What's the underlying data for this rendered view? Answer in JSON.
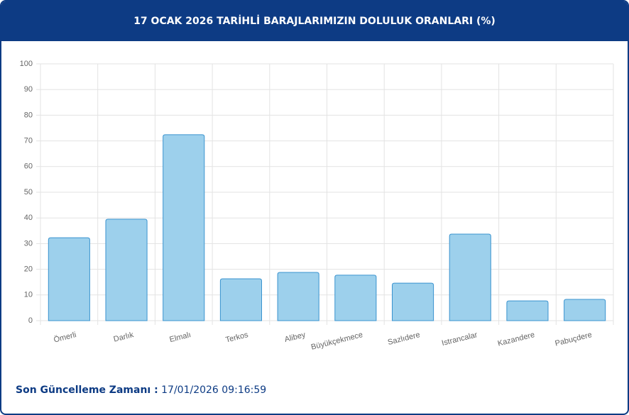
{
  "chart_data": {
    "type": "bar",
    "title": "17 OCAK 2026 TARİHLİ BARAJLARIMIZIN DOLULUK ORANLARI (%)",
    "categories": [
      "Ömerli",
      "Darlık",
      "Elmalı",
      "Terkos",
      "Alibey",
      "Büyükçekmece",
      "Sazlıdere",
      "Istrancalar",
      "Kazandere",
      "Pabuçdere"
    ],
    "values": [
      32.3,
      39.5,
      72.4,
      16.3,
      18.8,
      17.7,
      14.6,
      33.7,
      7.7,
      8.3
    ],
    "color": "#9dd0ec",
    "border_color": "#3a93cf",
    "ylim": [
      0,
      100
    ],
    "yticks": [
      0,
      10,
      20,
      30,
      40,
      50,
      60,
      70,
      80,
      90,
      100
    ],
    "grid": true
  },
  "footer": {
    "label": "Son Güncelleme Zamanı :",
    "value": "17/01/2026 09:16:59"
  }
}
